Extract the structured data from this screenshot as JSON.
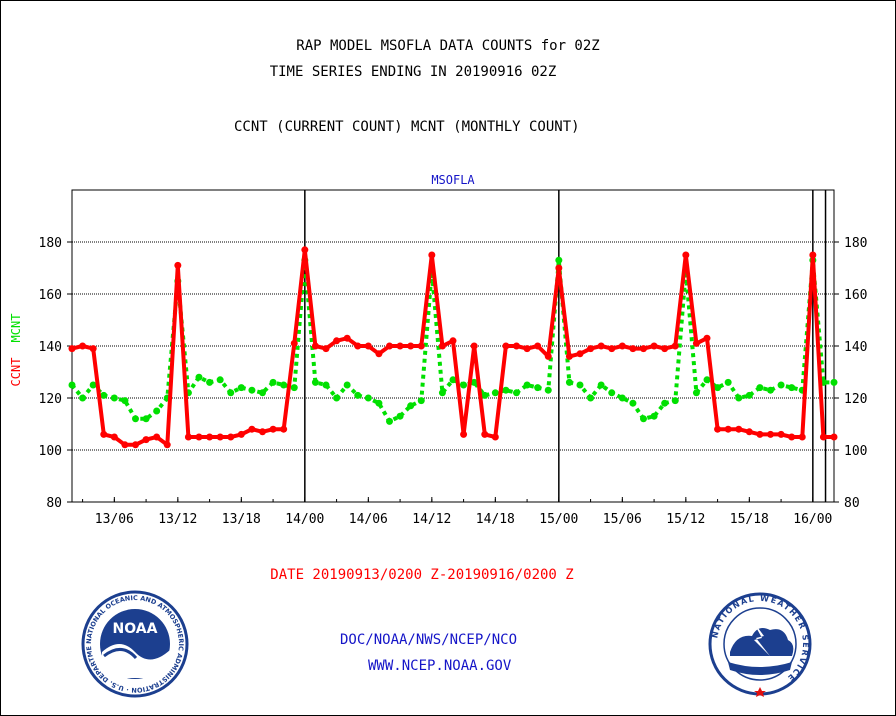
{
  "header": {
    "title_line1": "RAP MODEL MSOFLA DATA COUNTS for 02Z",
    "title_line2": "TIME SERIES ENDING IN 20190916 02Z",
    "subtitle": "CCNT (CURRENT COUNT) MCNT (MONTHLY COUNT)"
  },
  "footer": {
    "credit_line1": "DOC/NOAA/NWS/NCEP/NCO",
    "credit_line2": "WWW.NCEP.NOAA.GOV"
  },
  "logos": {
    "noaa": {
      "inner_text": "NOAA",
      "ring_text": "NATIONAL OCEANIC AND ATMOSPHERIC ADMINISTRATION · U.S. DEPARTMENT OF COMMERCE"
    },
    "nws": {
      "ring_text": "NATIONAL WEATHER SERVICE"
    }
  },
  "colors": {
    "ccnt": "#ff0000",
    "mcnt": "#00e000",
    "station": "#1515c8"
  },
  "chart_data": {
    "type": "line",
    "station_label": "MSOFLA",
    "date_range_label": "DATE 20190913/0200 Z-20190916/0200 Z",
    "ylabel_red": "CCNT",
    "ylabel_green": "MCNT",
    "ylim": [
      80,
      200
    ],
    "yticks": [
      80,
      100,
      120,
      140,
      160,
      180
    ],
    "hour_range": [
      2,
      74
    ],
    "xticks": [
      {
        "label": "13/06",
        "hour": 6
      },
      {
        "label": "13/12",
        "hour": 12
      },
      {
        "label": "13/18",
        "hour": 18
      },
      {
        "label": "14/00",
        "hour": 24
      },
      {
        "label": "14/06",
        "hour": 30
      },
      {
        "label": "14/12",
        "hour": 36
      },
      {
        "label": "14/18",
        "hour": 42
      },
      {
        "label": "15/00",
        "hour": 48
      },
      {
        "label": "15/06",
        "hour": 54
      },
      {
        "label": "15/12",
        "hour": 60
      },
      {
        "label": "15/18",
        "hour": 66
      },
      {
        "label": "16/00",
        "hour": 72
      }
    ],
    "day_boundaries": [
      24,
      48,
      72,
      73.2
    ],
    "grid_y": [
      100,
      120,
      140,
      160,
      180
    ],
    "series": [
      {
        "name": "CCNT",
        "color": "#ff0000",
        "style": "solid",
        "x": [
          2,
          3,
          4,
          5,
          6,
          7,
          8,
          9,
          10,
          11,
          12,
          13,
          14,
          15,
          16,
          17,
          18,
          19,
          20,
          21,
          22,
          23,
          24,
          25,
          26,
          27,
          28,
          29,
          30,
          31,
          32,
          33,
          34,
          35,
          36,
          37,
          38,
          39,
          40,
          41,
          42,
          43,
          44,
          45,
          46,
          47,
          48,
          49,
          50,
          51,
          52,
          53,
          54,
          55,
          56,
          57,
          58,
          59,
          60,
          61,
          62,
          63,
          64,
          65,
          66,
          67,
          68,
          69,
          70,
          71,
          72,
          73,
          74
        ],
        "values": [
          139,
          140,
          139,
          106,
          105,
          102,
          102,
          104,
          105,
          102,
          171,
          105,
          105,
          105,
          105,
          105,
          106,
          108,
          107,
          108,
          108,
          141,
          177,
          140,
          139,
          142,
          143,
          140,
          140,
          137,
          140,
          140,
          140,
          140,
          175,
          140,
          142,
          106,
          140,
          106,
          105,
          140,
          140,
          139,
          140,
          136,
          170,
          136,
          137,
          139,
          140,
          139,
          140,
          139,
          139,
          140,
          139,
          140,
          175,
          141,
          143,
          108,
          108,
          108,
          107,
          106,
          106,
          106,
          105,
          105,
          175,
          105,
          105
        ]
      },
      {
        "name": "MCNT",
        "color": "#00e000",
        "style": "dotted",
        "x": [
          2,
          3,
          4,
          5,
          6,
          7,
          8,
          9,
          10,
          11,
          12,
          13,
          14,
          15,
          16,
          17,
          18,
          19,
          20,
          21,
          22,
          23,
          24,
          25,
          26,
          27,
          28,
          29,
          30,
          31,
          32,
          33,
          34,
          35,
          36,
          37,
          38,
          39,
          40,
          41,
          42,
          43,
          44,
          45,
          46,
          47,
          48,
          49,
          50,
          51,
          52,
          53,
          54,
          55,
          56,
          57,
          58,
          59,
          60,
          61,
          62,
          63,
          64,
          65,
          66,
          67,
          68,
          69,
          70,
          71,
          72,
          73,
          74
        ],
        "values": [
          125,
          120,
          125,
          121,
          120,
          119,
          112,
          112,
          115,
          120,
          165,
          122,
          128,
          126,
          127,
          122,
          124,
          123,
          122,
          126,
          125,
          124,
          173,
          126,
          125,
          120,
          125,
          121,
          120,
          118,
          111,
          113,
          117,
          119,
          169,
          122,
          127,
          125,
          126,
          121,
          122,
          123,
          122,
          125,
          124,
          123,
          173,
          126,
          125,
          120,
          125,
          122,
          120,
          118,
          112,
          113,
          118,
          119,
          169,
          122,
          127,
          124,
          126,
          120,
          121,
          124,
          123,
          125,
          124,
          123,
          173,
          126,
          126
        ]
      }
    ]
  }
}
